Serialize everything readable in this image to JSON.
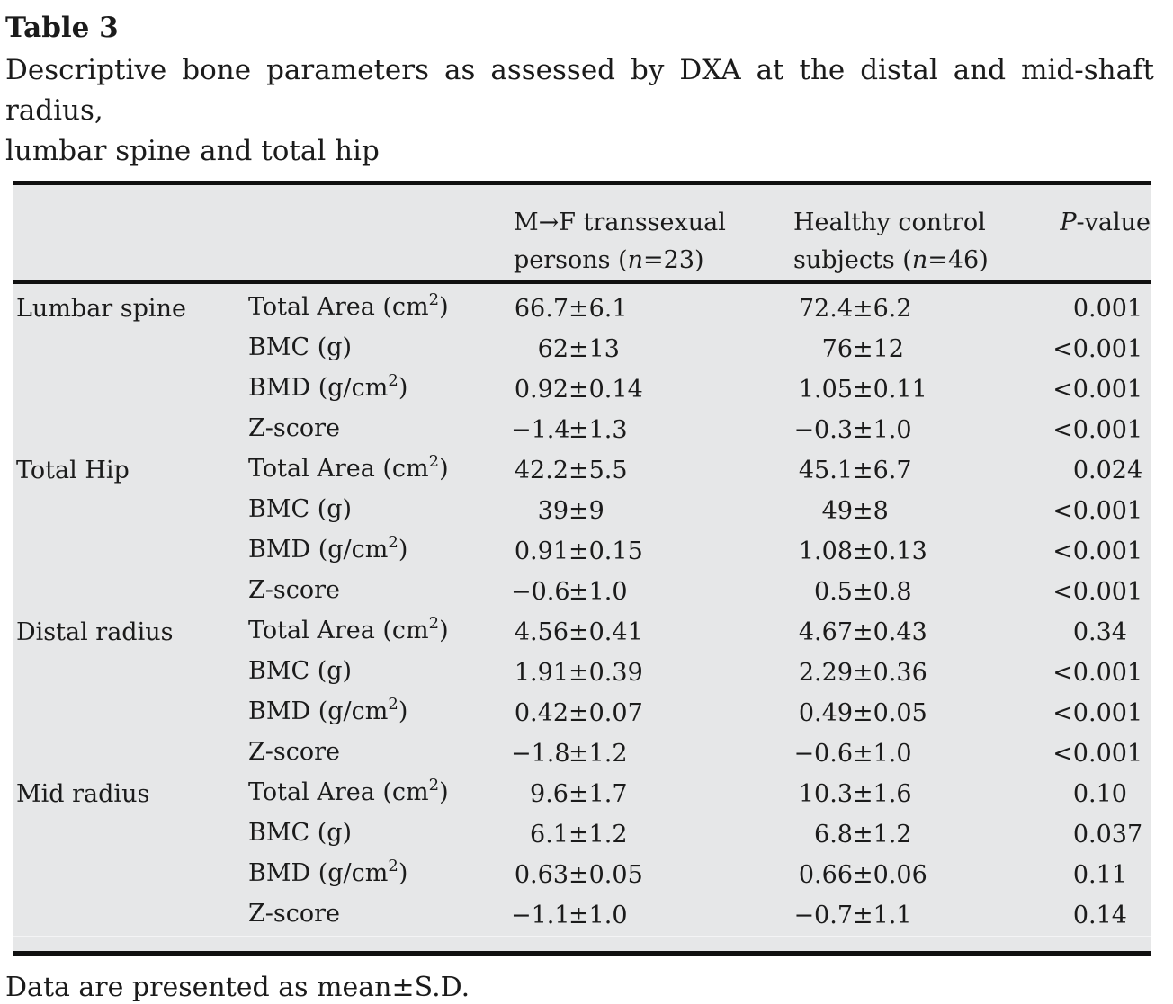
{
  "title": "Table 3",
  "caption_line1": "Descriptive bone parameters as assessed by DXA at the distal and mid-shaft radius,",
  "caption_line2": "lumbar spine and total hip",
  "footer": "Data are presented as mean±S.D.",
  "colors": {
    "table_background": "#e6e7e8",
    "text": "#1b1b1b",
    "rule": "#101010"
  },
  "table": {
    "header": {
      "group1": {
        "line1": "M→F transsexual",
        "line2_prefix": "persons (",
        "line2_n": "n",
        "line2_suffix": "=23)"
      },
      "group2": {
        "line1": "Healthy control",
        "line2_prefix": "subjects (",
        "line2_n": "n",
        "line2_suffix": "=46)"
      },
      "pvalue": {
        "italic": "P",
        "rest": "-value"
      }
    },
    "sections": [
      {
        "region": "Lumbar spine",
        "rows": [
          {
            "param": "Total Area (cm²)",
            "g1": "66.7±6.1",
            "g2": "72.4±6.2",
            "p": "0.001"
          },
          {
            "param": "BMC (g)",
            "g1": "62±13",
            "g2": "76±12",
            "p": "<0.001"
          },
          {
            "param": "BMD (g/cm²)",
            "g1": "0.92±0.14",
            "g2": "1.05±0.11",
            "p": "<0.001"
          },
          {
            "param": "Z-score",
            "g1": "−1.4±1.3",
            "g2": "−0.3±1.0",
            "p": "<0.001"
          }
        ]
      },
      {
        "region": "Total Hip",
        "rows": [
          {
            "param": "Total Area (cm²)",
            "g1": "42.2±5.5",
            "g2": "45.1±6.7",
            "p": "0.024"
          },
          {
            "param": "BMC (g)",
            "g1": "39±9",
            "g2": "49±8",
            "p": "<0.001"
          },
          {
            "param": "BMD (g/cm²)",
            "g1": "0.91±0.15",
            "g2": "1.08±0.13",
            "p": "<0.001"
          },
          {
            "param": "Z-score",
            "g1": "−0.6±1.0",
            "g2": "0.5±0.8",
            "p": "<0.001"
          }
        ]
      },
      {
        "region": "Distal radius",
        "rows": [
          {
            "param": "Total Area (cm²)",
            "g1": "4.56±0.41",
            "g2": "4.67±0.43",
            "p": "0.34"
          },
          {
            "param": "BMC (g)",
            "g1": "1.91±0.39",
            "g2": "2.29±0.36",
            "p": "<0.001"
          },
          {
            "param": "BMD (g/cm²)",
            "g1": "0.42±0.07",
            "g2": "0.49±0.05",
            "p": "<0.001"
          },
          {
            "param": "Z-score",
            "g1": "−1.8±1.2",
            "g2": "−0.6±1.0",
            "p": "<0.001"
          }
        ]
      },
      {
        "region": "Mid radius",
        "rows": [
          {
            "param": "Total Area (cm²)",
            "g1": "9.6±1.7",
            "g2": "10.3±1.6",
            "p": "0.10"
          },
          {
            "param": "BMC (g)",
            "g1": "6.1±1.2",
            "g2": "6.8±1.2",
            "p": "0.037"
          },
          {
            "param": "BMD (g/cm²)",
            "g1": "0.63±0.05",
            "g2": "0.66±0.06",
            "p": "0.11"
          },
          {
            "param": "Z-score",
            "g1": "−1.1±1.0",
            "g2": "−0.7±1.1",
            "p": "0.14"
          }
        ]
      }
    ]
  }
}
